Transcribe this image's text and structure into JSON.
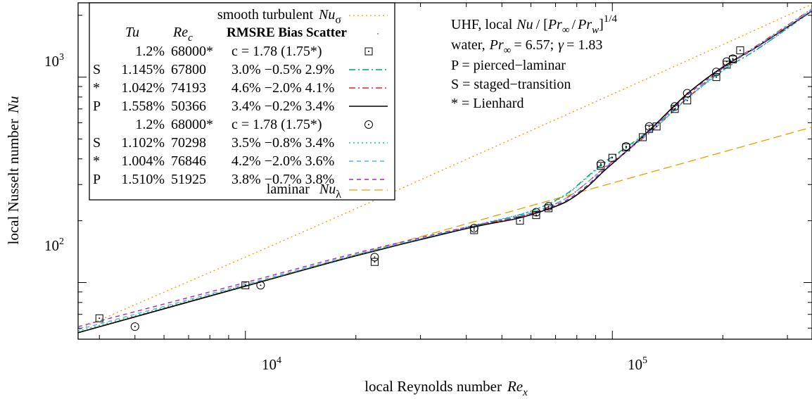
{
  "chart_data": {
    "type": "line",
    "x_scale": "log",
    "y_scale": "log",
    "xlim": [
      3500,
      350000
    ],
    "ylim": [
      53,
      2300
    ],
    "xlabel": "local Reynolds number",
    "xlabel_var": "Re",
    "xlabel_sub": "x",
    "ylabel": "local Nusselt number",
    "ylabel_var": "Nu",
    "x_ticks": [
      {
        "value": 10000,
        "base": "10",
        "exp": "4"
      },
      {
        "value": 100000,
        "base": "10",
        "exp": "5"
      }
    ],
    "y_ticks": [
      {
        "value": 100,
        "base": "10",
        "exp": "2"
      },
      {
        "value": 1000,
        "base": "10",
        "exp": "3"
      }
    ],
    "legend": {
      "header": {
        "tu": "Tu",
        "rec": "Re",
        "rec_sub": "c",
        "stats": "RMSRE Bias Scatter"
      },
      "smooth": {
        "text": "smooth turbulent",
        "var": "Nu",
        "sub": "σ"
      },
      "laminar": {
        "text": "laminar",
        "var": "Nu",
        "sub": "λ"
      },
      "rows": [
        {
          "prefix": "",
          "tu": "1.2%",
          "rec": "68000*",
          "stats": "c = 1.78 (1.75*)"
        },
        {
          "prefix": "S",
          "tu": "1.145%",
          "rec": "67800",
          "stats": "3.0%  −0.5%  2.9%"
        },
        {
          "prefix": "*",
          "tu": "1.042%",
          "rec": "74193",
          "stats": "4.6%  −2.0%  4.1%"
        },
        {
          "prefix": "P",
          "tu": "1.558%",
          "rec": "50366",
          "stats": "3.4%  −0.2%  3.4%"
        },
        {
          "prefix": "",
          "tu": "1.2%",
          "rec": "68000*",
          "stats": "c = 1.78 (1.75*)"
        },
        {
          "prefix": "S",
          "tu": "1.102%",
          "rec": "70298",
          "stats": "3.5%  −0.8%  3.4%"
        },
        {
          "prefix": "*",
          "tu": "1.004%",
          "rec": "76846",
          "stats": "4.2%  −2.0%  3.6%"
        },
        {
          "prefix": "P",
          "tu": "1.510%",
          "rec": "51925",
          "stats": "3.8%  −0.7%  3.8%"
        }
      ]
    },
    "annotation": {
      "line1_a": "UHF,  local",
      "line1_var": "Nu",
      "line1_b": "/ [",
      "line1_var2": "Pr",
      "line1_sub2": "∞",
      "line1_c": "/",
      "line1_var3": "Pr",
      "line1_sub3": "w",
      "line1_d": "]",
      "line1_sup": "1/4",
      "line2_a": "water,",
      "line2_var": "Pr",
      "line2_sub": "∞",
      "line2_b": "= 6.57;",
      "line2_gamma": "γ",
      "line2_c": "= 1.83",
      "line3": "P = pierced−laminar",
      "line4": "S = staged−transition",
      "line5": "* = Lienhard"
    },
    "colors": {
      "smooth": "#e69f00",
      "laminar": "#e69f00",
      "S1": "#009e73",
      "star1": "#d62728",
      "P1": "#000000",
      "S2": "#1fb5a5",
      "star2": "#56b4e9",
      "P2": "#9e2fb8"
    },
    "series": [
      {
        "key": "smooth",
        "style": "dotted",
        "x": [
          3500,
          5000,
          10000,
          20000,
          50000,
          100000,
          200000,
          350000
        ],
        "y": [
          59,
          78,
          133,
          229,
          475,
          826,
          1439,
          2265
        ]
      },
      {
        "key": "laminar",
        "style": "longdash",
        "x": [
          3500,
          10000,
          20000,
          50000,
          100000,
          200000,
          350000
        ],
        "y": [
          57.1,
          96.5,
          136.5,
          215.8,
          305.2,
          431.6,
          571.0
        ]
      },
      {
        "key": "S1",
        "style": "dashdot",
        "x": [
          3500,
          10000,
          20000,
          40000,
          55000,
          65000,
          75000,
          85000,
          95000,
          110000,
          130000,
          160000,
          200000,
          250000,
          350000
        ],
        "y": [
          57,
          96,
          135,
          185,
          212,
          236,
          270,
          325,
          385,
          460,
          575,
          790,
          1080,
          1380,
          2100
        ]
      },
      {
        "key": "star1",
        "style": "dashdot",
        "x": [
          3500,
          10000,
          20000,
          40000,
          55000,
          65000,
          75000,
          85000,
          95000,
          110000,
          130000,
          160000,
          200000,
          250000,
          350000
        ],
        "y": [
          57,
          96,
          135,
          184,
          208,
          228,
          258,
          305,
          362,
          440,
          560,
          790,
          1110,
          1440,
          2150
        ]
      },
      {
        "key": "P1",
        "style": "solid",
        "x": [
          3500,
          10000,
          20000,
          40000,
          55000,
          65000,
          75000,
          85000,
          95000,
          110000,
          130000,
          160000,
          200000,
          250000,
          350000
        ],
        "y": [
          57,
          96,
          135,
          183,
          205,
          224,
          248,
          290,
          350,
          440,
          580,
          830,
          1120,
          1420,
          2100
        ]
      },
      {
        "key": "S2",
        "style": "dotted",
        "x": [
          3500,
          10000,
          20000,
          40000,
          55000,
          65000,
          75000,
          85000,
          95000,
          110000,
          130000,
          160000,
          200000,
          250000,
          350000
        ],
        "y": [
          58,
          97,
          136,
          186,
          213,
          235,
          268,
          322,
          380,
          455,
          570,
          785,
          1075,
          1375,
          2090
        ]
      },
      {
        "key": "star2",
        "style": "dashed",
        "x": [
          3500,
          10000,
          20000,
          40000,
          55000,
          65000,
          75000,
          85000,
          95000,
          110000,
          130000,
          160000,
          200000,
          250000,
          350000
        ],
        "y": [
          59,
          98,
          137,
          185,
          210,
          230,
          258,
          305,
          360,
          440,
          560,
          785,
          1100,
          1430,
          2140
        ]
      },
      {
        "key": "P2",
        "style": "dashed",
        "x": [
          3500,
          10000,
          20000,
          40000,
          55000,
          65000,
          75000,
          85000,
          95000,
          110000,
          130000,
          160000,
          200000,
          250000,
          350000
        ],
        "y": [
          61,
          100,
          139,
          186,
          208,
          227,
          252,
          295,
          355,
          440,
          575,
          815,
          1110,
          1410,
          2110
        ]
      }
    ],
    "points_square": {
      "x": [
        4000,
        10000,
        22500,
        42000,
        56000,
        62000,
        67000,
        93000,
        100000,
        109000,
        121000,
        126000,
        132000,
        148000,
        160000,
        192000,
        205000,
        213000,
        223000
      ],
      "y": [
        67,
        97,
        126,
        180,
        200,
        213,
        230,
        370,
        405,
        455,
        510,
        560,
        575,
        700,
        770,
        1000,
        1150,
        1220,
        1350
      ]
    },
    "points_circle": {
      "x": [
        5000,
        11000,
        22500,
        42000,
        62000,
        67000,
        93000,
        109000,
        126000,
        148000,
        160000,
        192000,
        205000,
        213000
      ],
      "y": [
        61,
        97,
        133,
        184,
        220,
        235,
        378,
        460,
        575,
        720,
        835,
        1060,
        1190,
        1230
      ]
    }
  }
}
